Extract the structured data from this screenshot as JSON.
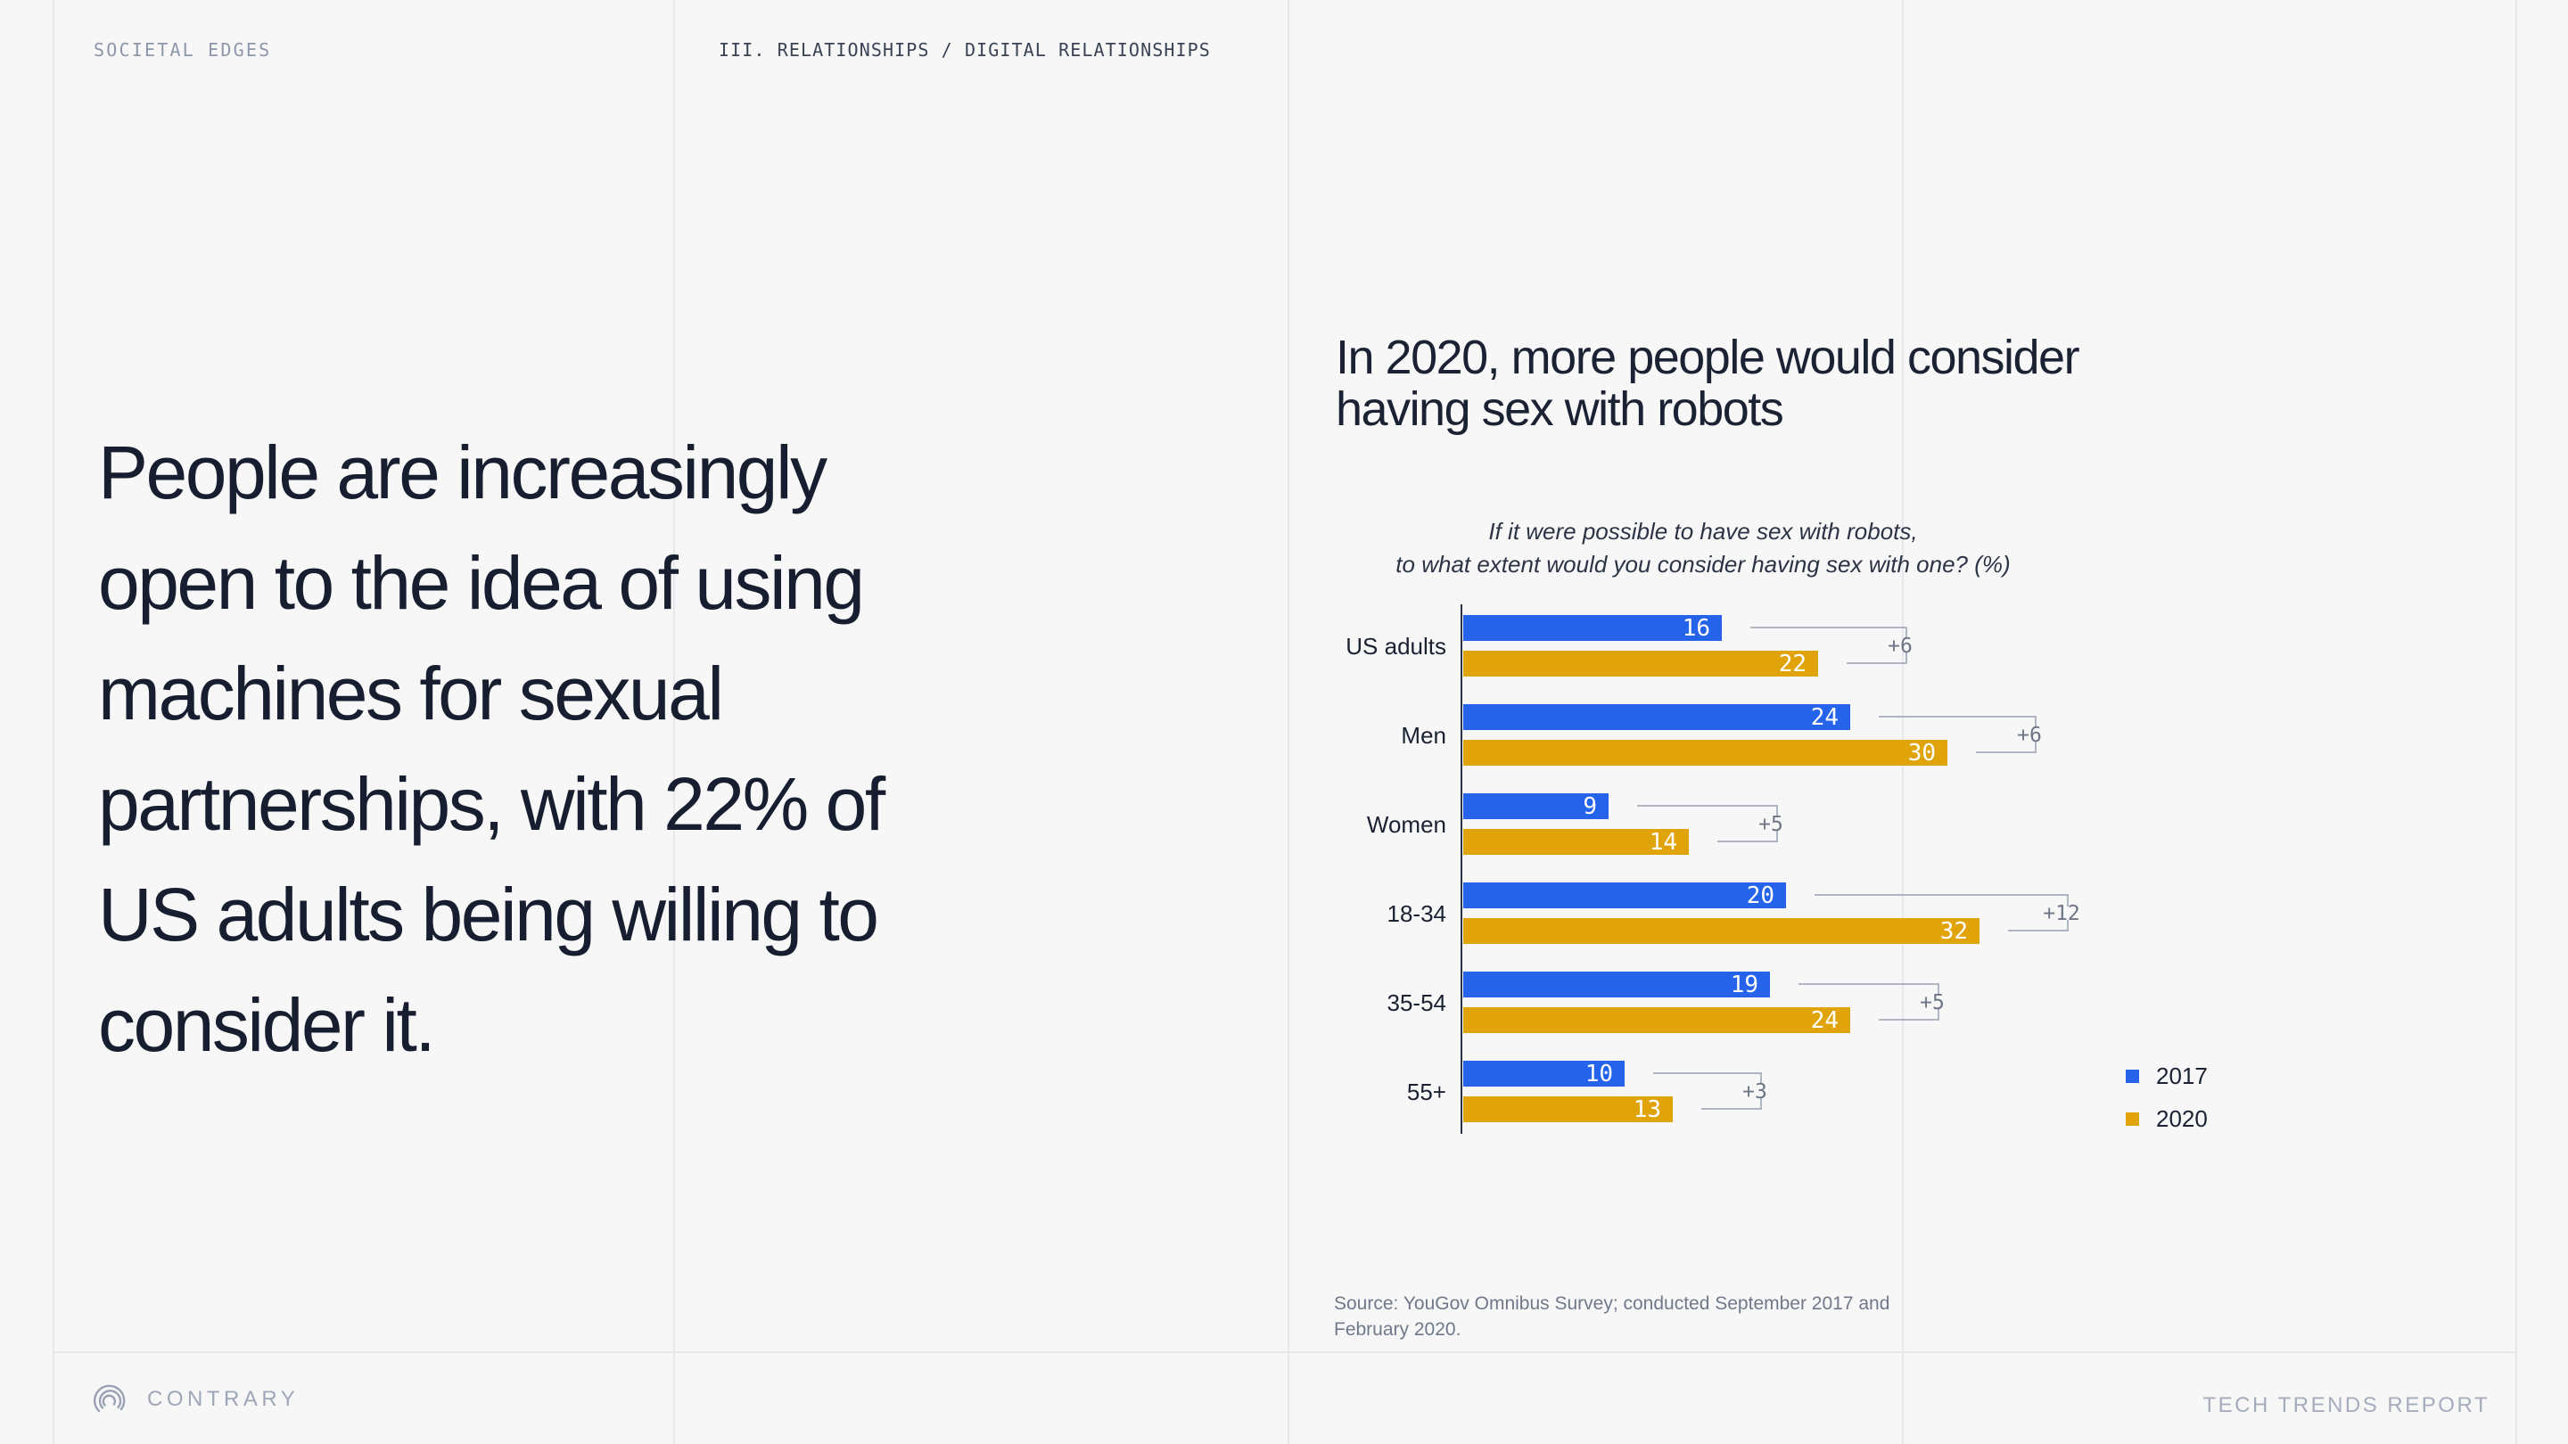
{
  "page": {
    "kicker": "SOCIETAL EDGES",
    "breadcrumb": "III. RELATIONSHIPS / DIGITAL RELATIONSHIPS",
    "headline_lines": [
      "People are increasingly",
      "open to the idea of using",
      "machines for sexual",
      "partnerships, with 22% of",
      "US adults being willing to",
      "consider it."
    ]
  },
  "footer": {
    "brand": "CONTRARY",
    "report_title": "TECH TRENDS REPORT"
  },
  "colors": {
    "background": "#F7F7F8",
    "divider": "#E7E8EC",
    "text_dark": "#1A2232",
    "kicker_gray": "#8E96A9",
    "axis": "#2B3444",
    "bracket_gray": "#AFB5C2",
    "diff_gray": "#6E7685",
    "source_gray": "#6F7989",
    "footer_gray": "#9FA6B7"
  },
  "chart_data": {
    "type": "bar",
    "orientation": "horizontal",
    "title_lines": [
      "In 2020, more people would consider",
      "having sex with robots"
    ],
    "subtitle_lines": [
      "If it were possible to have sex with robots,",
      "to what extent would you consider having sex with one? (%)"
    ],
    "categories": [
      "US adults",
      "Men",
      "Women",
      "18-34",
      "35-54",
      "55+"
    ],
    "series": [
      {
        "name": "2017",
        "color": "#2563EB",
        "values": [
          16,
          24,
          9,
          20,
          19,
          10
        ]
      },
      {
        "name": "2020",
        "color": "#E0A40A",
        "values": [
          22,
          30,
          14,
          32,
          24,
          13
        ]
      }
    ],
    "diff_labels": [
      "+6",
      "+6",
      "+5",
      "+12",
      "+5",
      "+3"
    ],
    "value_unit": "percent",
    "xlim": [
      0,
      35
    ],
    "grid": false,
    "legend_position": "right",
    "source_lines": [
      "Source: YouGov Omnibus Survey; conducted September 2017 and",
      "February 2020."
    ]
  }
}
